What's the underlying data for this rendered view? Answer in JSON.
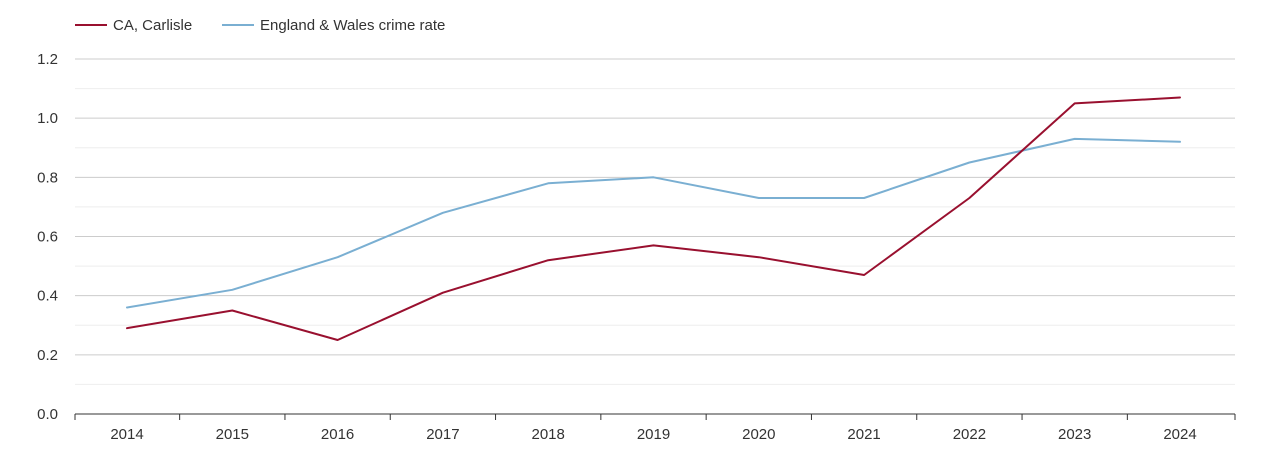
{
  "chart_data": {
    "type": "line",
    "title": "",
    "xlabel": "",
    "ylabel": "",
    "categories": [
      "2014",
      "2015",
      "2016",
      "2017",
      "2018",
      "2019",
      "2020",
      "2021",
      "2022",
      "2023",
      "2024"
    ],
    "ylim": [
      0,
      1.2
    ],
    "yticks": [
      "0.0",
      "0.2",
      "0.4",
      "0.6",
      "0.8",
      "1.0",
      "1.2"
    ],
    "grid": true,
    "legend_position": "top-left",
    "series": [
      {
        "name": "CA, Carlisle",
        "color": "#99102f",
        "values": [
          0.29,
          0.35,
          0.25,
          0.41,
          0.52,
          0.57,
          0.53,
          0.47,
          0.73,
          1.05,
          1.07
        ]
      },
      {
        "name": "England & Wales crime rate",
        "color": "#7aafd2",
        "values": [
          0.36,
          0.42,
          0.53,
          0.68,
          0.78,
          0.8,
          0.73,
          0.73,
          0.85,
          0.93,
          0.92
        ]
      }
    ]
  }
}
